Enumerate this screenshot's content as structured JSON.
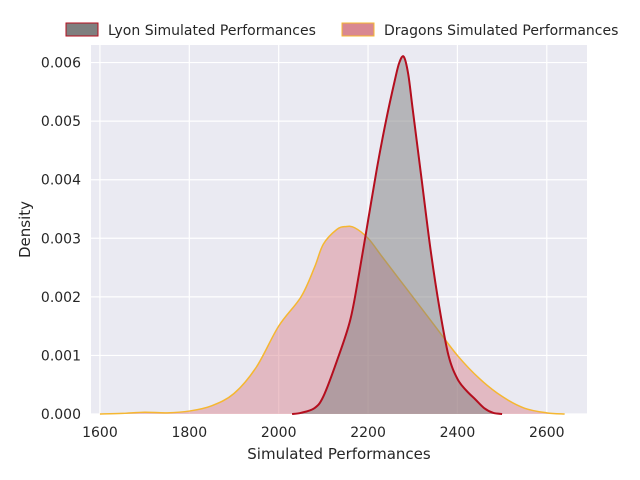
{
  "chart_data": {
    "type": "area",
    "title": "",
    "xlabel": "Simulated Performances",
    "ylabel": "Density",
    "xlim": [
      1580,
      2690
    ],
    "ylim": [
      0,
      0.0063
    ],
    "x_ticks": [
      1600,
      1800,
      2000,
      2200,
      2400,
      2600
    ],
    "y_ticks": [
      0.0,
      0.001,
      0.002,
      0.003,
      0.004,
      0.005,
      0.006
    ],
    "x_tick_labels": [
      "1600",
      "1800",
      "2000",
      "2200",
      "2400",
      "2600"
    ],
    "y_tick_labels": [
      "0.000",
      "0.001",
      "0.002",
      "0.003",
      "0.004",
      "0.005",
      "0.006"
    ],
    "grid": true,
    "legend_position": "top-center",
    "series": [
      {
        "name": "Dragons Simulated Performances",
        "fill_color": "#d98891",
        "line_color": "#f5b731",
        "points": [
          [
            1600,
            0.0
          ],
          [
            1650,
            1e-05
          ],
          [
            1700,
            3e-05
          ],
          [
            1750,
            2e-05
          ],
          [
            1800,
            5e-05
          ],
          [
            1850,
            0.00014
          ],
          [
            1900,
            0.00035
          ],
          [
            1950,
            0.0008
          ],
          [
            2000,
            0.0015
          ],
          [
            2050,
            0.002
          ],
          [
            2080,
            0.0025
          ],
          [
            2100,
            0.0029
          ],
          [
            2130,
            0.00315
          ],
          [
            2150,
            0.0032
          ],
          [
            2170,
            0.00318
          ],
          [
            2200,
            0.003
          ],
          [
            2230,
            0.0027
          ],
          [
            2270,
            0.0023
          ],
          [
            2300,
            0.002
          ],
          [
            2350,
            0.0015
          ],
          [
            2400,
            0.001
          ],
          [
            2450,
            0.0006
          ],
          [
            2500,
            0.0003
          ],
          [
            2550,
            0.0001
          ],
          [
            2600,
            2e-05
          ],
          [
            2640,
            0.0
          ]
        ]
      },
      {
        "name": "Lyon Simulated Performances",
        "fill_color": "#7f7f7f",
        "line_color": "#b40e1e",
        "points": [
          [
            2030,
            0.0
          ],
          [
            2050,
            2e-05
          ],
          [
            2080,
            0.0001
          ],
          [
            2100,
            0.0003
          ],
          [
            2130,
            0.0009
          ],
          [
            2160,
            0.0016
          ],
          [
            2180,
            0.0024
          ],
          [
            2200,
            0.0033
          ],
          [
            2220,
            0.0042
          ],
          [
            2240,
            0.005
          ],
          [
            2260,
            0.0057
          ],
          [
            2270,
            0.006
          ],
          [
            2280,
            0.0061
          ],
          [
            2290,
            0.0058
          ],
          [
            2300,
            0.0052
          ],
          [
            2320,
            0.004
          ],
          [
            2340,
            0.0028
          ],
          [
            2360,
            0.0018
          ],
          [
            2380,
            0.001
          ],
          [
            2400,
            0.0006
          ],
          [
            2420,
            0.0004
          ],
          [
            2440,
            0.00025
          ],
          [
            2460,
            0.0001
          ],
          [
            2480,
            2e-05
          ],
          [
            2500,
            0.0
          ]
        ]
      }
    ],
    "legend_order": [
      "Lyon Simulated Performances",
      "Dragons Simulated Performances"
    ]
  },
  "colors": {
    "plot_background": "#eaeaf2",
    "grid": "#ffffff",
    "text": "#262626"
  }
}
